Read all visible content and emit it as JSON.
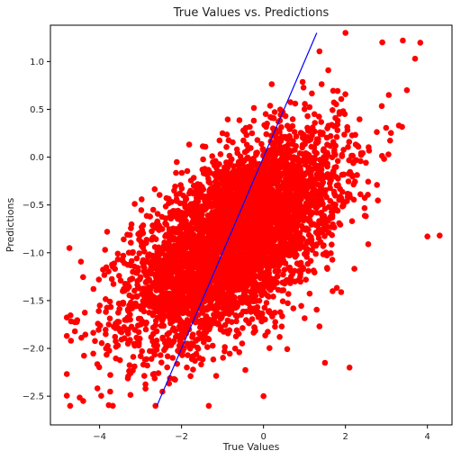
{
  "chart_data": {
    "type": "scatter",
    "title": "True Values vs. Predictions",
    "xlabel": "True Values",
    "ylabel": "Predictions",
    "xlim": [
      -5.2,
      4.6
    ],
    "ylim": [
      -2.8,
      1.38
    ],
    "xticks": [
      -4,
      -2,
      0,
      2,
      4
    ],
    "yticks": [
      -2.5,
      -2.0,
      -1.5,
      -1.0,
      -0.5,
      0.0,
      0.5,
      1.0
    ],
    "grid": false,
    "point_color": "#ff0000",
    "line_color": "#0000ff",
    "reference_line": {
      "x": [
        -2.6,
        1.3
      ],
      "y": [
        -2.6,
        1.3
      ]
    },
    "point_cloud": {
      "count": 5000,
      "x_mean": -0.7,
      "x_std": 1.25,
      "y_intercept": -0.85,
      "y_slope": 0.25,
      "y_noise_std": 0.42,
      "y_range": [
        -2.6,
        1.3
      ]
    },
    "outliers": {
      "x": [
        2.9,
        3.4,
        3.7,
        4.0,
        4.3,
        2.0,
        0.0,
        -4.8,
        -4.7,
        3.5,
        2.1,
        1.5
      ],
      "y": [
        1.2,
        1.22,
        1.03,
        -0.83,
        -0.82,
        1.3,
        -2.5,
        -1.87,
        -1.92,
        0.7,
        -2.2,
        -2.15
      ]
    }
  }
}
